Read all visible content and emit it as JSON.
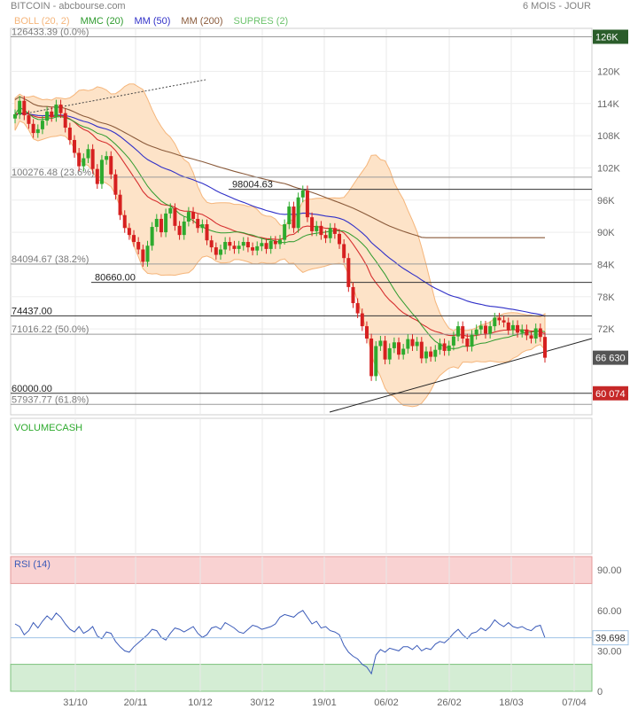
{
  "header": {
    "symbol": "BITCOIN - abcbourse.com",
    "period": "6 MOIS - JOUR"
  },
  "legend": [
    {
      "label": "BOLL (20, 2)",
      "color": "#f5b57a"
    },
    {
      "label": "MMC (20)",
      "color": "#2e9b2e"
    },
    {
      "label": "MM (50)",
      "color": "#3030c8"
    },
    {
      "label": "MM (200)",
      "color": "#8a5a3a"
    },
    {
      "label": "SUPRES (2)",
      "color": "#6cc36c"
    }
  ],
  "price_axis": {
    "ticks": [
      "120K",
      "114K",
      "108K",
      "102K",
      "96K",
      "90K",
      "84K",
      "78K",
      "72K"
    ]
  },
  "date_axis": {
    "ticks": [
      "31/10",
      "20/11",
      "10/12",
      "30/12",
      "19/01",
      "06/02",
      "26/02",
      "18/03",
      "07/04"
    ]
  },
  "last_price_label": "66 630",
  "levels": [
    {
      "label": "126433.39  (0.0%)",
      "axis_label": "126K",
      "price": 126433.39,
      "style": "fib",
      "axis_tag": "dark"
    },
    {
      "label": "100276.48  (23.6%)",
      "price": 100276.48,
      "style": "fib"
    },
    {
      "label": "98004.63",
      "price": 98004.63,
      "style": "sr"
    },
    {
      "label": "84094.67  (38.2%)",
      "price": 84094.67,
      "style": "fib"
    },
    {
      "label": "80660.00",
      "price": 80660.0,
      "style": "sr"
    },
    {
      "label": "74437.00",
      "price": 74437.0,
      "style": "sr"
    },
    {
      "label": "71016.22  (50.0%)",
      "price": 71016.22,
      "style": "fib"
    },
    {
      "label": "60000.00",
      "axis_label": "60 074",
      "price": 60000.0,
      "style": "sr",
      "axis_tag": "red"
    },
    {
      "label": "57937.77  (61.8%)",
      "price": 57937.77,
      "style": "fib"
    }
  ],
  "volume_panel": {
    "label": "VOLUMECASH"
  },
  "rsi_panel": {
    "label": "RSI (14)",
    "ticks": [
      "90.00",
      "60.00",
      "30.00",
      "0"
    ],
    "current_label": "39.698"
  },
  "colors": {
    "up": "#2eaa2e",
    "down": "#d62020",
    "boll_fill": "#fde3c8",
    "boll_line": "#f5b57a",
    "rsi_line": "#3a5ab8",
    "rsi_over": "#f9d2d2",
    "rsi_under": "#d4edd4",
    "last_tag": "#555555",
    "dark_tag": "#2b5d2b",
    "red_tag": "#c62828"
  },
  "chart_data": {
    "type": "candlestick",
    "xlabel": "",
    "ylabel": "",
    "ylim": [
      56000,
      128000
    ],
    "close_series": [
      112000,
      114500,
      111800,
      110200,
      108500,
      109200,
      110800,
      112500,
      111500,
      113800,
      112200,
      109500,
      107200,
      104800,
      102300,
      103800,
      105500,
      101800,
      99000,
      103500,
      104200,
      100800,
      97000,
      93200,
      90800,
      89500,
      88200,
      86800,
      84500,
      87500,
      91000,
      92500,
      90000,
      93500,
      94500,
      91200,
      89500,
      92000,
      93800,
      92500,
      90800,
      91500,
      88500,
      87200,
      85800,
      86800,
      88200,
      87500,
      86900,
      87500,
      88200,
      87200,
      86600,
      87400,
      88000,
      86900,
      88400,
      87800,
      88600,
      91500,
      94800,
      90800,
      96500,
      97800,
      92800,
      90200,
      91200,
      89500,
      88900,
      90800,
      89700,
      87800,
      85200,
      79800,
      76800,
      74900,
      72500,
      70200,
      63200,
      68800,
      69800,
      66300,
      68400,
      69500,
      67200,
      68300,
      70100,
      68800,
      69600,
      66500,
      67800,
      66800,
      68100,
      69300,
      67900,
      68900,
      70600,
      72500,
      70200,
      68700,
      70900,
      71900,
      72600,
      71100,
      72500,
      74100,
      73600,
      73200,
      71800,
      72700,
      71300,
      71900,
      70800,
      70200,
      72100,
      70500,
      66630
    ],
    "rsi": {
      "ylim": [
        0,
        100
      ],
      "zones": [
        80,
        20
      ],
      "values": [
        50,
        48,
        42,
        45,
        51,
        47,
        52,
        56,
        53,
        58,
        55,
        50,
        46,
        44,
        48,
        43,
        45,
        48,
        41,
        39,
        44,
        43,
        37,
        33,
        30,
        29,
        33,
        36,
        39,
        42,
        46,
        45,
        40,
        38,
        43,
        47,
        46,
        44,
        46,
        48,
        43,
        40,
        42,
        47,
        48,
        46,
        51,
        49,
        47,
        44,
        43,
        46,
        49,
        48,
        46,
        47,
        48,
        50,
        55,
        57,
        56,
        55,
        58,
        60,
        55,
        50,
        52,
        47,
        48,
        45,
        44,
        42,
        34,
        29,
        26,
        24,
        20,
        18,
        13,
        27,
        31,
        29,
        32,
        31,
        30,
        33,
        33,
        31,
        34,
        30,
        32,
        31,
        35,
        37,
        36,
        39,
        43,
        46,
        42,
        39,
        43,
        44,
        47,
        45,
        48,
        53,
        50,
        48,
        51,
        48,
        47,
        48,
        46,
        45,
        48,
        49,
        39.698
      ]
    }
  }
}
